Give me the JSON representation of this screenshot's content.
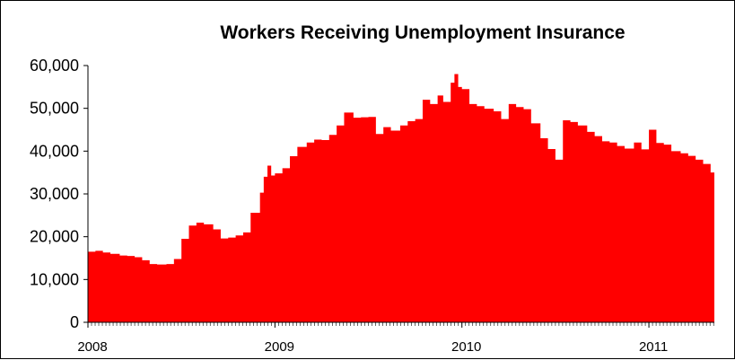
{
  "chart_data": {
    "type": "area",
    "title": "Workers Receiving Unemployment Insurance",
    "xlabel": "",
    "ylabel": "",
    "ylim": [
      0,
      60000
    ],
    "y_ticks": [
      "0",
      "10,000",
      "20,000",
      "30,000",
      "40,000",
      "50,000",
      "60,000"
    ],
    "x_ticks": [
      "2008",
      "2009",
      "2010",
      "2011"
    ],
    "fill_color": "#ff0000",
    "grid": false,
    "legend": "none",
    "series": [
      {
        "x": [
          2008.0,
          2008.04,
          2008.08,
          2008.12,
          2008.17,
          2008.21,
          2008.25,
          2008.29,
          2008.33,
          2008.37,
          2008.42,
          2008.46,
          2008.5,
          2008.54,
          2008.58,
          2008.62,
          2008.67,
          2008.71,
          2008.75,
          2008.79,
          2008.83,
          2008.87,
          2008.92,
          2008.94,
          2008.96,
          2008.98,
          2009.0,
          2009.04,
          2009.08,
          2009.12,
          2009.17,
          2009.21,
          2009.25,
          2009.29,
          2009.33,
          2009.37,
          2009.42,
          2009.46,
          2009.5,
          2009.54,
          2009.58,
          2009.62,
          2009.67,
          2009.71,
          2009.75,
          2009.79,
          2009.83,
          2009.87,
          2009.9,
          2009.94,
          2009.96,
          2009.98,
          2010.0,
          2010.04,
          2010.08,
          2010.12,
          2010.17,
          2010.21,
          2010.25,
          2010.29,
          2010.33,
          2010.37,
          2010.42,
          2010.46,
          2010.5,
          2010.54,
          2010.58,
          2010.62,
          2010.67,
          2010.71,
          2010.75,
          2010.79,
          2010.83,
          2010.87,
          2010.92,
          2010.96,
          2011.0,
          2011.04,
          2011.08,
          2011.12,
          2011.17,
          2011.21,
          2011.25,
          2011.29,
          2011.33,
          2011.35
        ],
        "values": [
          16500,
          16700,
          16300,
          16000,
          15600,
          15500,
          15200,
          14500,
          13600,
          13500,
          13600,
          14800,
          19500,
          22600,
          23300,
          22900,
          21700,
          19600,
          19800,
          20300,
          21000,
          25600,
          30300,
          34000,
          36600,
          34300,
          34800,
          36000,
          38800,
          41000,
          42000,
          42700,
          42600,
          43800,
          46000,
          49000,
          47800,
          47900,
          48000,
          44000,
          45600,
          44800,
          46000,
          47000,
          47500,
          52000,
          51000,
          53000,
          51500,
          56000,
          58000,
          55000,
          54500,
          51000,
          50500,
          49900,
          49300,
          47500,
          51000,
          50300,
          49800,
          46500,
          43000,
          40500,
          38000,
          47200,
          46800,
          46000,
          44500,
          43500,
          42300,
          42000,
          41200,
          40600,
          42000,
          40400,
          45000,
          41900,
          41500,
          40000,
          39500,
          38900,
          38000,
          37000,
          35000,
          33000
        ]
      }
    ]
  }
}
